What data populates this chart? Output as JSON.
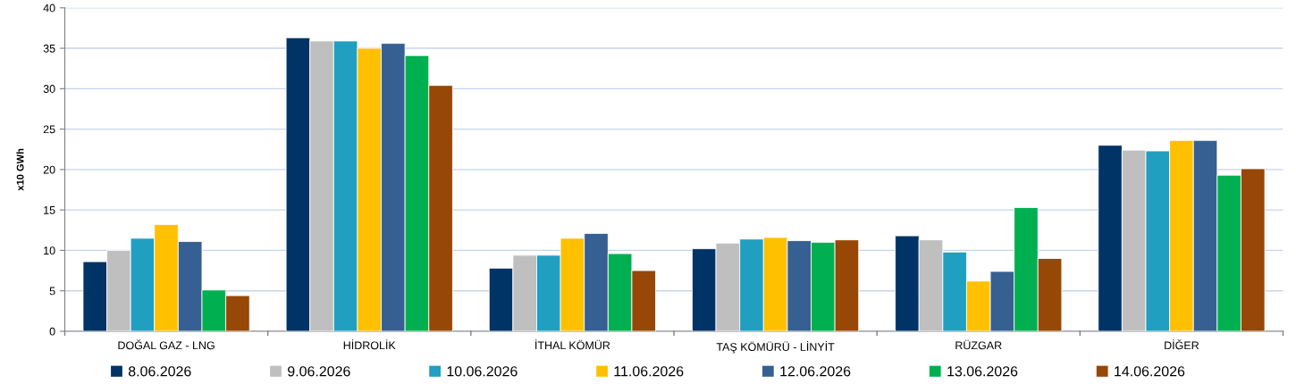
{
  "chart_data": {
    "type": "bar",
    "ylabel": "x10 GWh",
    "categories": [
      "DOĞAL GAZ - LNG",
      "HİDROLİK",
      "İTHAL KÖMÜR",
      "TAŞ KÖMÜRÜ - LİNYİT",
      "RÜZGAR",
      "DİĞER"
    ],
    "series": [
      {
        "name": "8.06.2026",
        "color": "#003366",
        "values": [
          8.6,
          36.3,
          7.8,
          10.2,
          11.8,
          23.0
        ]
      },
      {
        "name": "9.06.2026",
        "color": "#bfbfbf",
        "values": [
          10.0,
          35.9,
          9.4,
          10.9,
          11.3,
          22.4
        ]
      },
      {
        "name": "10.06.2026",
        "color": "#209fc1",
        "values": [
          11.5,
          35.9,
          9.4,
          11.4,
          9.8,
          22.3
        ]
      },
      {
        "name": "11.06.2026",
        "color": "#ffc000",
        "values": [
          13.2,
          35.0,
          11.5,
          11.6,
          6.2,
          23.6
        ]
      },
      {
        "name": "12.06.2026",
        "color": "#366092",
        "values": [
          11.1,
          35.6,
          12.1,
          11.2,
          7.4,
          23.6
        ]
      },
      {
        "name": "13.06.2026",
        "color": "#00b050",
        "values": [
          5.1,
          34.1,
          9.6,
          11.0,
          15.3,
          19.3
        ]
      },
      {
        "name": "14.06.2026",
        "color": "#974706",
        "values": [
          4.4,
          30.4,
          7.5,
          11.3,
          9.0,
          20.1
        ]
      }
    ],
    "ylim": [
      0,
      40
    ],
    "yticks": [
      0,
      5,
      10,
      15,
      20,
      25,
      30,
      35,
      40
    ],
    "grid": "y",
    "legend": "bottom"
  }
}
